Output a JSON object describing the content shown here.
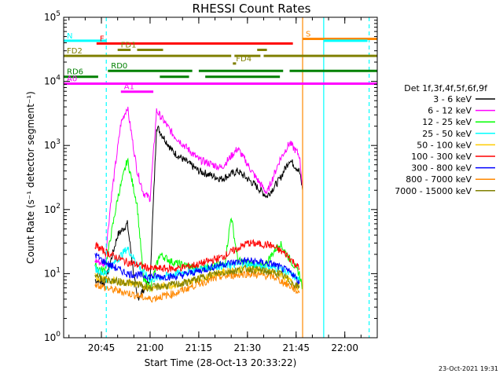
{
  "chart_data": {
    "type": "line",
    "title": "RHESSI Count Rates",
    "xlabel": "Start Time (28-Oct-13 20:33:22)",
    "ylabel": "Count Rate (s⁻¹ detector segment⁻¹)",
    "y_scale": "log",
    "ylim": [
      1,
      100000
    ],
    "xlim": [
      "20:33:22",
      "22:10:00"
    ],
    "x_tick_labels": [
      "20:45",
      "21:00",
      "21:15",
      "21:30",
      "21:45",
      "22:00"
    ],
    "y_tick_labels": [
      {
        "base": "10",
        "exp": "0"
      },
      {
        "base": "10",
        "exp": "1"
      },
      {
        "base": "10",
        "exp": "2"
      },
      {
        "base": "10",
        "exp": "3"
      },
      {
        "base": "10",
        "exp": "4"
      },
      {
        "base": "10",
        "exp": "5"
      }
    ],
    "legend_title": "Det 1f,3f,4f,5f,6f,9f",
    "legend_position": "right",
    "series": [
      {
        "name": "3 - 6 keV",
        "color": "#000000",
        "points": [
          [
            "20:43",
            8
          ],
          [
            "20:46",
            7
          ],
          [
            "20:50",
            40
          ],
          [
            "20:53",
            60
          ],
          [
            "20:56",
            4
          ],
          [
            "21:00",
            8
          ],
          [
            "21:02",
            2000
          ],
          [
            "21:07",
            800
          ],
          [
            "21:15",
            400
          ],
          [
            "21:22",
            300
          ],
          [
            "21:27",
            400
          ],
          [
            "21:32",
            250
          ],
          [
            "21:36",
            160
          ],
          [
            "21:40",
            300
          ],
          [
            "21:43",
            600
          ],
          [
            "21:46",
            400
          ],
          [
            "21:47",
            200
          ]
        ]
      },
      {
        "name": "6 - 12 keV",
        "color": "#ff00ff",
        "points": [
          [
            "20:43",
            16
          ],
          [
            "20:46",
            14
          ],
          [
            "20:48",
            150
          ],
          [
            "20:51",
            2200
          ],
          [
            "20:53",
            4000
          ],
          [
            "20:56",
            400
          ],
          [
            "20:58",
            180
          ],
          [
            "21:00",
            150
          ],
          [
            "21:02",
            3500
          ],
          [
            "21:07",
            1500
          ],
          [
            "21:15",
            600
          ],
          [
            "21:22",
            450
          ],
          [
            "21:27",
            900
          ],
          [
            "21:32",
            350
          ],
          [
            "21:36",
            180
          ],
          [
            "21:40",
            600
          ],
          [
            "21:43",
            1100
          ],
          [
            "21:46",
            700
          ],
          [
            "21:47",
            220
          ]
        ]
      },
      {
        "name": "12 - 25 keV",
        "color": "#00ff00",
        "points": [
          [
            "20:43",
            13
          ],
          [
            "20:46",
            11
          ],
          [
            "20:50",
            150
          ],
          [
            "20:53",
            600
          ],
          [
            "20:56",
            120
          ],
          [
            "20:58",
            8
          ],
          [
            "21:00",
            6
          ],
          [
            "21:03",
            20
          ],
          [
            "21:07",
            15
          ],
          [
            "21:15",
            12
          ],
          [
            "21:23",
            14
          ],
          [
            "21:25",
            80
          ],
          [
            "21:27",
            16
          ],
          [
            "21:35",
            13
          ],
          [
            "21:40",
            30
          ],
          [
            "21:43",
            17
          ],
          [
            "21:46",
            10
          ],
          [
            "21:47",
            6
          ]
        ]
      },
      {
        "name": "25 - 50 keV",
        "color": "#00ffff",
        "points": [
          [
            "20:43",
            12
          ],
          [
            "20:46",
            10
          ],
          [
            "20:53",
            25
          ],
          [
            "20:57",
            12
          ],
          [
            "21:00",
            8
          ],
          [
            "21:08",
            10
          ],
          [
            "21:20",
            13
          ],
          [
            "21:30",
            14
          ],
          [
            "21:40",
            12
          ],
          [
            "21:46",
            8
          ]
        ]
      },
      {
        "name": "50 - 100 keV",
        "color": "#ffcc00",
        "points": [
          [
            "20:43",
            9
          ],
          [
            "20:46",
            8
          ],
          [
            "20:55",
            7
          ],
          [
            "21:00",
            6
          ],
          [
            "21:10",
            7
          ],
          [
            "21:20",
            10
          ],
          [
            "21:30",
            12
          ],
          [
            "21:40",
            10
          ],
          [
            "21:46",
            6
          ]
        ]
      },
      {
        "name": "100 - 300 keV",
        "color": "#ff0000",
        "points": [
          [
            "20:43",
            28
          ],
          [
            "20:46",
            22
          ],
          [
            "20:53",
            15
          ],
          [
            "20:58",
            13
          ],
          [
            "21:00",
            12
          ],
          [
            "21:08",
            12
          ],
          [
            "21:15",
            14
          ],
          [
            "21:22",
            18
          ],
          [
            "21:30",
            30
          ],
          [
            "21:37",
            28
          ],
          [
            "21:42",
            20
          ],
          [
            "21:46",
            12
          ]
        ]
      },
      {
        "name": "300 - 800 keV",
        "color": "#0000ff",
        "points": [
          [
            "20:43",
            20
          ],
          [
            "20:46",
            15
          ],
          [
            "20:53",
            10
          ],
          [
            "21:00",
            9
          ],
          [
            "21:08",
            9
          ],
          [
            "21:15",
            11
          ],
          [
            "21:22",
            14
          ],
          [
            "21:30",
            16
          ],
          [
            "21:38",
            14
          ],
          [
            "21:44",
            10
          ],
          [
            "21:46",
            7
          ]
        ]
      },
      {
        "name": "800 - 7000 keV",
        "color": "#ff8800",
        "points": [
          [
            "20:43",
            7
          ],
          [
            "20:46",
            6
          ],
          [
            "20:53",
            5
          ],
          [
            "21:00",
            4
          ],
          [
            "21:08",
            5
          ],
          [
            "21:15",
            7
          ],
          [
            "21:22",
            9
          ],
          [
            "21:30",
            10
          ],
          [
            "21:38",
            9
          ],
          [
            "21:44",
            6
          ],
          [
            "21:46",
            5
          ]
        ]
      },
      {
        "name": "7000 - 15000 keV",
        "color": "#808000",
        "points": [
          [
            "20:43",
            10
          ],
          [
            "20:46",
            8
          ],
          [
            "20:55",
            7
          ],
          [
            "21:00",
            6
          ],
          [
            "21:10",
            7
          ],
          [
            "21:20",
            10
          ],
          [
            "21:30",
            12
          ],
          [
            "21:40",
            10
          ],
          [
            "21:46",
            6
          ]
        ]
      }
    ],
    "vertical_markers": [
      {
        "time": "20:46:30",
        "color": "#00ffff",
        "style": "dashed"
      },
      {
        "time": "21:47:00",
        "color": "#ff8800",
        "style": "solid"
      },
      {
        "time": "21:53:30",
        "color": "#00ffff",
        "style": "solid"
      },
      {
        "time": "22:07:30",
        "color": "#00ffff",
        "style": "dashed"
      }
    ],
    "flags": [
      {
        "label": "S",
        "color": "#ff8800",
        "ylevel": 46000,
        "segments": [
          [
            "21:47",
            "22:10"
          ]
        ]
      },
      {
        "label": "N",
        "color": "#00ffff",
        "ylevel": 43000,
        "segments": [
          [
            "20:33:22",
            "20:46:30"
          ],
          [
            "21:53:30",
            "22:07"
          ]
        ]
      },
      {
        "label": "F",
        "color": "#ff0000",
        "ylevel": 39000,
        "segments": [
          [
            "20:43:30",
            "21:44"
          ]
        ]
      },
      {
        "label": "FD1",
        "color": "#808000",
        "ylevel": 31000,
        "segments": [
          [
            "20:50",
            "20:54"
          ],
          [
            "20:56",
            "21:04"
          ],
          [
            "21:33",
            "21:36"
          ]
        ]
      },
      {
        "label": "FD2",
        "color": "#808000",
        "ylevel": 25000,
        "segments": [
          [
            "20:33:22",
            "21:25"
          ],
          [
            "21:26",
            "21:34"
          ],
          [
            "21:35",
            "22:10"
          ]
        ]
      },
      {
        "label": "FD4",
        "color": "#808000",
        "ylevel": 19000,
        "segments": [
          [
            "21:25:30",
            "21:26:30"
          ]
        ]
      },
      {
        "label": "RD0",
        "color": "#008000",
        "ylevel": 14600,
        "segments": [
          [
            "20:47",
            "21:13"
          ],
          [
            "21:15",
            "21:41"
          ],
          [
            "21:43",
            "22:10"
          ]
        ]
      },
      {
        "label": "RD6",
        "color": "#008000",
        "ylevel": 11800,
        "segments": [
          [
            "20:33:22",
            "20:44"
          ],
          [
            "21:03",
            "21:12"
          ],
          [
            "21:17",
            "21:40"
          ]
        ]
      },
      {
        "label": "A0",
        "color": "#ff00ff",
        "ylevel": 9200,
        "segments": [
          [
            "20:33:22",
            "22:10"
          ]
        ]
      },
      {
        "label": "A1",
        "color": "#ff00ff",
        "ylevel": 6900,
        "segments": [
          [
            "20:51",
            "21:01"
          ]
        ]
      }
    ]
  },
  "footer": {
    "date_stamp": "23-Oct-2021 19:31"
  }
}
